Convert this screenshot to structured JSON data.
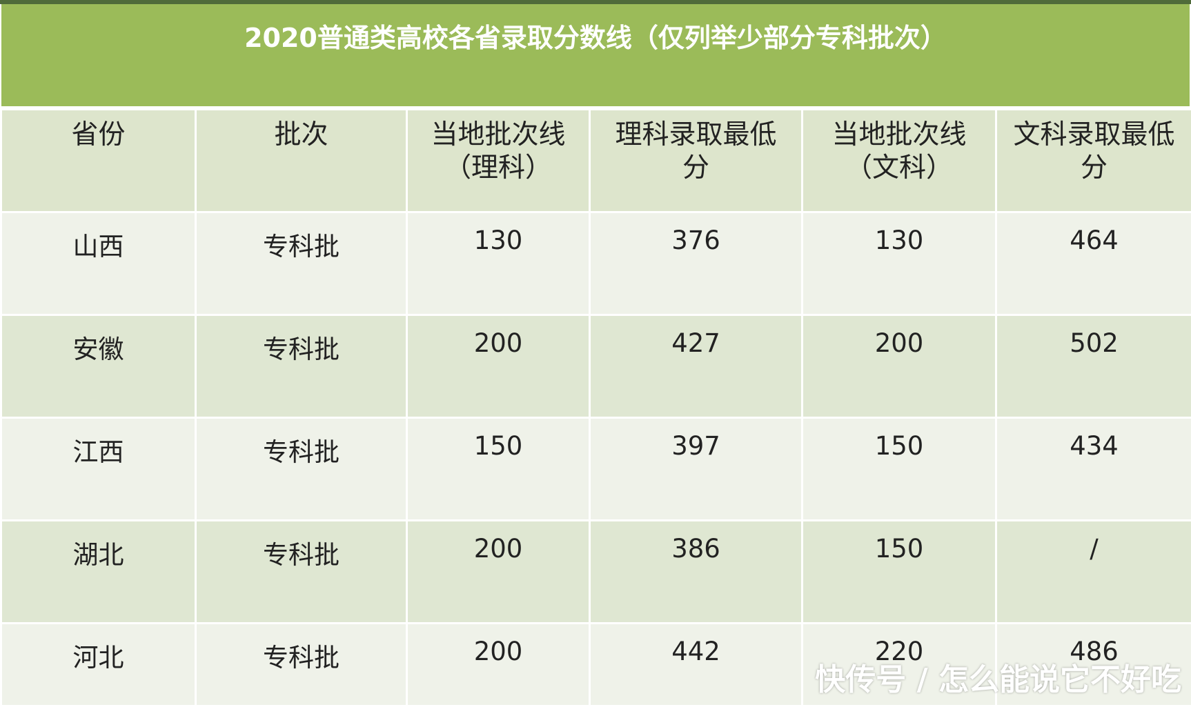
{
  "title": "2020普通类高校各省录取分数线（仅列举少部分专科批次）",
  "table": {
    "header": [
      [
        "省份"
      ],
      [
        "批次"
      ],
      [
        "当地批次线",
        "（理科）"
      ],
      [
        "理科录取最低",
        "分"
      ],
      [
        "当地批次线",
        "（文科）"
      ],
      [
        "文科录取最低",
        "分"
      ]
    ],
    "rows": [
      [
        "山西",
        "专科批",
        "130",
        "376",
        "130",
        "464"
      ],
      [
        "安徽",
        "专科批",
        "200",
        "427",
        "200",
        "502"
      ],
      [
        "江西",
        "专科批",
        "150",
        "397",
        "150",
        "434"
      ],
      [
        "湖北",
        "专科批",
        "200",
        "386",
        "150",
        "/"
      ],
      [
        "河北",
        "专科批",
        "200",
        "442",
        "220",
        "486"
      ]
    ]
  },
  "watermark": "快传号 / 怎么能说它不好吃"
}
